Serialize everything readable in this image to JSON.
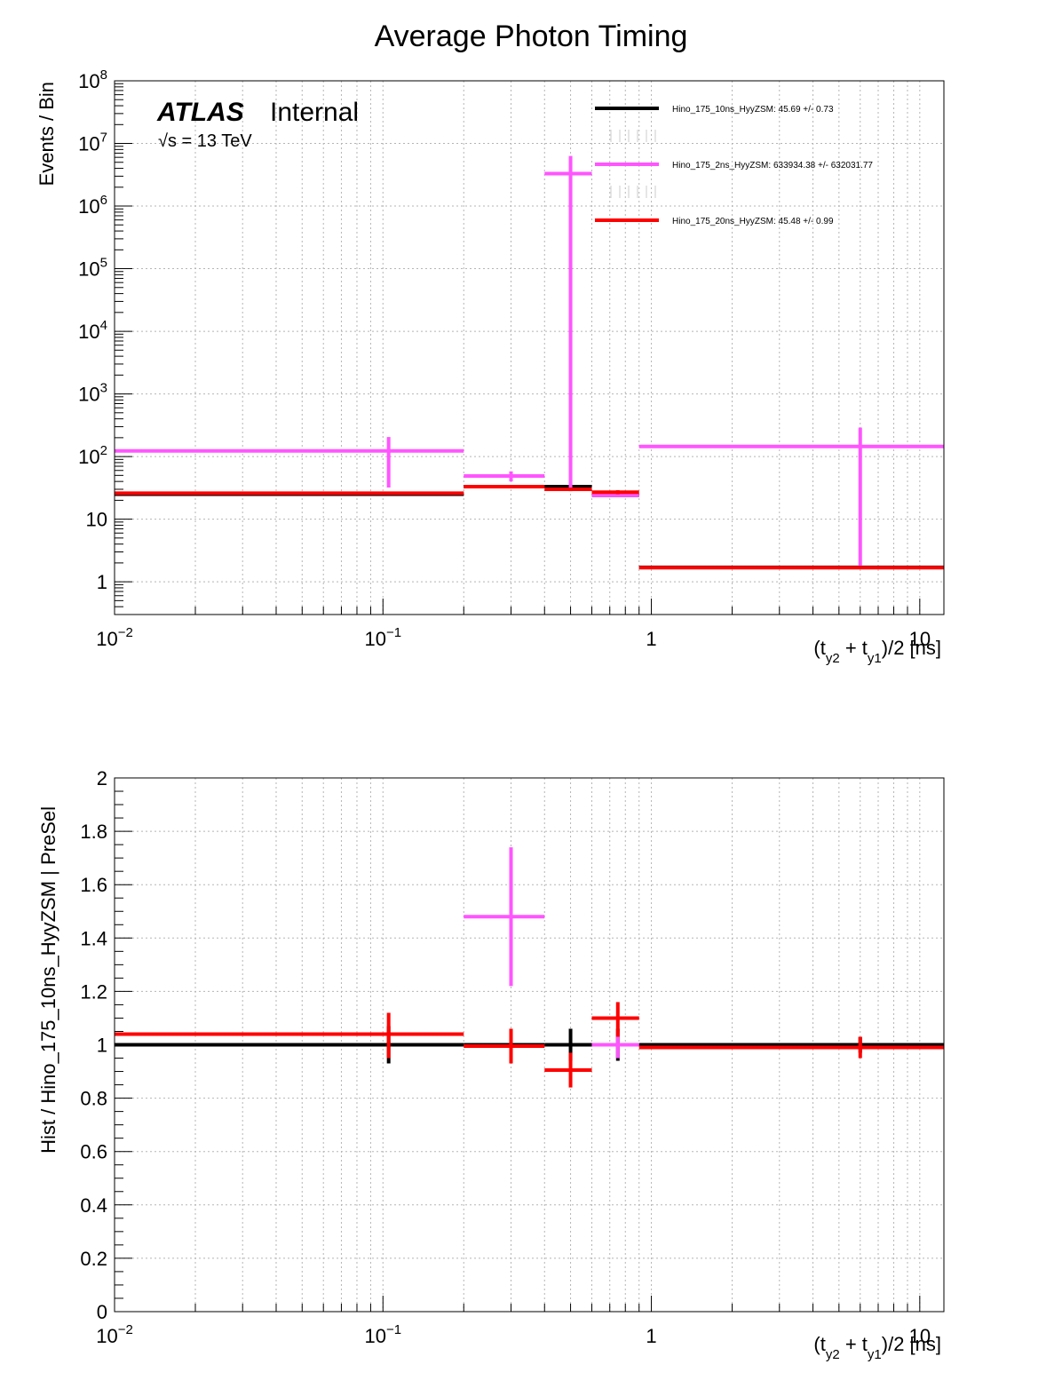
{
  "page_title": "Average Photon Timing",
  "chart_data": [
    {
      "type": "histogram",
      "scale": {
        "x": "log",
        "y": "log"
      },
      "xlim": [
        0.01,
        12.3
      ],
      "ylim": [
        0.3,
        100000000
      ],
      "ylabel": "Events / Bin",
      "xlabel": "(t_y2 + t_y1)/2 [ns]",
      "atlas_label": "ATLAS",
      "atlas_sublabel": "Internal",
      "energy_label": "√s = 13 TeV",
      "x_ticks": [
        {
          "v": 0.01,
          "base": "10",
          "exp": "−2"
        },
        {
          "v": 0.1,
          "base": "10",
          "exp": "−1"
        },
        {
          "v": 1,
          "base": "1",
          "exp": ""
        },
        {
          "v": 10,
          "base": "10",
          "exp": ""
        }
      ],
      "y_ticks": [
        {
          "v": 1,
          "base": "1",
          "exp": ""
        },
        {
          "v": 10,
          "base": "10",
          "exp": ""
        },
        {
          "v": 100,
          "base": "10",
          "exp": "2"
        },
        {
          "v": 1000,
          "base": "10",
          "exp": "3"
        },
        {
          "v": 10000,
          "base": "10",
          "exp": "4"
        },
        {
          "v": 100000,
          "base": "10",
          "exp": "5"
        },
        {
          "v": 1000000,
          "base": "10",
          "exp": "6"
        },
        {
          "v": 10000000,
          "base": "10",
          "exp": "7"
        },
        {
          "v": 100000000,
          "base": "10",
          "exp": "8"
        }
      ],
      "legend": [
        {
          "label": "Hino_175_10ns_HyyZSM: 45.69 +/- 0.73",
          "color": "#000000"
        },
        {
          "label": "Hino_175_2ns_HyyZSM: 633934.38 +/- 632031.77",
          "color": "#ff55ff"
        },
        {
          "label": "Hino_175_20ns_HyyZSM: 45.48 +/- 0.99",
          "color": "#ff0000"
        }
      ],
      "series": [
        {
          "name": "Hino_175_10ns_HyyZSM",
          "color": "#000000",
          "bins": [
            {
              "x0": 0.01,
              "x1": 0.2,
              "xc": 0.105,
              "y": 25,
              "ylo": 24,
              "yhi": 26
            },
            {
              "x0": 0.2,
              "x1": 0.4,
              "xc": 0.3,
              "y": 33,
              "ylo": 31,
              "yhi": 35
            },
            {
              "x0": 0.4,
              "x1": 0.6,
              "xc": 0.5,
              "y": 33,
              "ylo": 31,
              "yhi": 35
            },
            {
              "x0": 0.6,
              "x1": 0.9,
              "xc": 0.75,
              "y": 24,
              "ylo": 23,
              "yhi": 25
            },
            {
              "x0": 0.9,
              "x1": 12.3,
              "xc": 6.0,
              "y": 1.7,
              "ylo": 1.65,
              "yhi": 1.75
            }
          ]
        },
        {
          "name": "Hino_175_2ns_HyyZSM",
          "color": "#ff55ff",
          "bins": [
            {
              "x0": 0.01,
              "x1": 0.2,
              "xc": 0.105,
              "y": 123,
              "ylo": 32,
              "yhi": 205
            },
            {
              "x0": 0.2,
              "x1": 0.4,
              "xc": 0.3,
              "y": 49,
              "ylo": 40,
              "yhi": 58
            },
            {
              "x0": 0.4,
              "x1": 0.6,
              "xc": 0.5,
              "y": 3300000,
              "ylo": 32,
              "yhi": 6300000
            },
            {
              "x0": 0.6,
              "x1": 0.9,
              "xc": 0.75,
              "y": 24,
              "ylo": 23,
              "yhi": 25
            },
            {
              "x0": 0.9,
              "x1": 12.3,
              "xc": 6.0,
              "y": 145,
              "ylo": 1.8,
              "yhi": 290
            }
          ]
        },
        {
          "name": "Hino_175_20ns_HyyZSM",
          "color": "#ff0000",
          "bins": [
            {
              "x0": 0.01,
              "x1": 0.2,
              "xc": 0.105,
              "y": 26,
              "ylo": 24.5,
              "yhi": 27.5
            },
            {
              "x0": 0.2,
              "x1": 0.4,
              "xc": 0.3,
              "y": 33,
              "ylo": 31,
              "yhi": 35
            },
            {
              "x0": 0.4,
              "x1": 0.6,
              "xc": 0.5,
              "y": 30,
              "ylo": 28,
              "yhi": 32
            },
            {
              "x0": 0.6,
              "x1": 0.9,
              "xc": 0.75,
              "y": 27,
              "ylo": 25,
              "yhi": 29
            },
            {
              "x0": 0.9,
              "x1": 12.3,
              "xc": 6.0,
              "y": 1.68,
              "ylo": 1.6,
              "yhi": 1.76
            }
          ]
        }
      ]
    },
    {
      "type": "histogram",
      "scale": {
        "x": "log",
        "y": "linear"
      },
      "xlim": [
        0.01,
        12.3
      ],
      "ylim": [
        0,
        2
      ],
      "ylabel": "Hist / Hino_175_10ns_HyyZSM | PreSel",
      "xlabel": "(t_y2 + t_y1)/2 [ns]",
      "x_ticks": [
        {
          "v": 0.01,
          "base": "10",
          "exp": "−2"
        },
        {
          "v": 0.1,
          "base": "10",
          "exp": "−1"
        },
        {
          "v": 1,
          "base": "1",
          "exp": ""
        },
        {
          "v": 10,
          "base": "10",
          "exp": ""
        }
      ],
      "y_ticks": [
        {
          "v": 0,
          "label": "0"
        },
        {
          "v": 0.2,
          "label": "0.2"
        },
        {
          "v": 0.4,
          "label": "0.4"
        },
        {
          "v": 0.6,
          "label": "0.6"
        },
        {
          "v": 0.8,
          "label": "0.8"
        },
        {
          "v": 1,
          "label": "1"
        },
        {
          "v": 1.2,
          "label": "1.2"
        },
        {
          "v": 1.4,
          "label": "1.4"
        },
        {
          "v": 1.6,
          "label": "1.6"
        },
        {
          "v": 1.8,
          "label": "1.8"
        },
        {
          "v": 2,
          "label": "2"
        }
      ],
      "series": [
        {
          "name": "Hino_175_10ns_HyyZSM",
          "color": "#000000",
          "bins": [
            {
              "x0": 0.01,
              "x1": 0.2,
              "xc": 0.105,
              "y": 1.0,
              "ylo": 0.93,
              "yhi": 1.07
            },
            {
              "x0": 0.2,
              "x1": 0.4,
              "xc": 0.3,
              "y": 1.0,
              "ylo": 0.94,
              "yhi": 1.06
            },
            {
              "x0": 0.4,
              "x1": 0.6,
              "xc": 0.5,
              "y": 1.0,
              "ylo": 0.94,
              "yhi": 1.06
            },
            {
              "x0": 0.6,
              "x1": 0.9,
              "xc": 0.75,
              "y": 1.0,
              "ylo": 0.94,
              "yhi": 1.06
            },
            {
              "x0": 0.9,
              "x1": 12.3,
              "xc": 6.0,
              "y": 1.0,
              "ylo": 0.97,
              "yhi": 1.03
            }
          ]
        },
        {
          "name": "Hino_175_2ns_HyyZSM",
          "color": "#ff55ff",
          "bins": [
            {
              "x0": 0.2,
              "x1": 0.4,
              "xc": 0.3,
              "y": 1.48,
              "ylo": 1.22,
              "yhi": 1.74
            },
            {
              "x0": 0.6,
              "x1": 0.9,
              "xc": 0.75,
              "y": 1.0,
              "ylo": 0.95,
              "yhi": 1.05
            }
          ]
        },
        {
          "name": "Hino_175_20ns_HyyZSM",
          "color": "#ff0000",
          "bins": [
            {
              "x0": 0.01,
              "x1": 0.2,
              "xc": 0.105,
              "y": 1.04,
              "ylo": 0.95,
              "yhi": 1.12
            },
            {
              "x0": 0.2,
              "x1": 0.4,
              "xc": 0.3,
              "y": 0.995,
              "ylo": 0.93,
              "yhi": 1.06
            },
            {
              "x0": 0.4,
              "x1": 0.6,
              "xc": 0.5,
              "y": 0.905,
              "ylo": 0.84,
              "yhi": 0.97
            },
            {
              "x0": 0.6,
              "x1": 0.9,
              "xc": 0.75,
              "y": 1.1,
              "ylo": 1.03,
              "yhi": 1.16
            },
            {
              "x0": 0.9,
              "x1": 12.3,
              "xc": 6.0,
              "y": 0.99,
              "ylo": 0.95,
              "yhi": 1.03
            }
          ]
        }
      ]
    }
  ]
}
